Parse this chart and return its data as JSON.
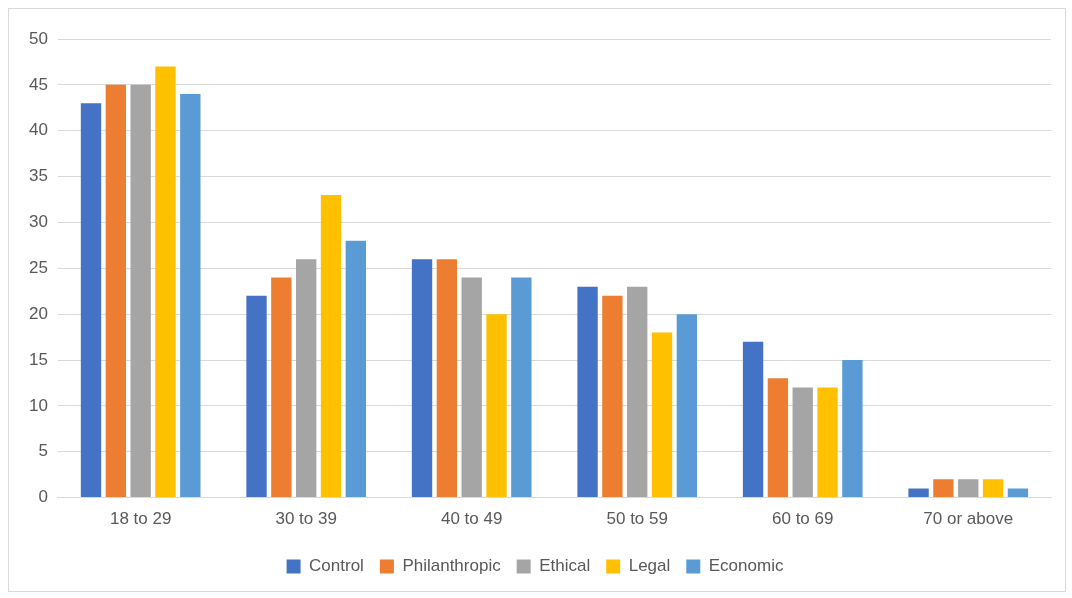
{
  "chart_data": {
    "type": "bar",
    "categories": [
      "18 to 29",
      "30 to 39",
      "40 to 49",
      "50 to 59",
      "60 to 69",
      "70 or above"
    ],
    "series": [
      {
        "name": "Control",
        "color": "#4472c4",
        "values": [
          43,
          22,
          26,
          23,
          17,
          1
        ]
      },
      {
        "name": "Philanthropic",
        "color": "#ed7d31",
        "values": [
          45,
          24,
          26,
          22,
          13,
          2
        ]
      },
      {
        "name": "Ethical",
        "color": "#a5a5a5",
        "values": [
          45,
          26,
          24,
          23,
          12,
          2
        ]
      },
      {
        "name": "Legal",
        "color": "#ffc000",
        "values": [
          47,
          33,
          20,
          18,
          12,
          2
        ]
      },
      {
        "name": "Economic",
        "color": "#5b9bd5",
        "values": [
          44,
          28,
          24,
          20,
          15,
          1
        ]
      }
    ],
    "ylim": [
      0,
      50
    ],
    "yticks": [
      0,
      5,
      10,
      15,
      20,
      25,
      30,
      35,
      40,
      45,
      50
    ],
    "grid": "y",
    "legend": "bottom"
  }
}
